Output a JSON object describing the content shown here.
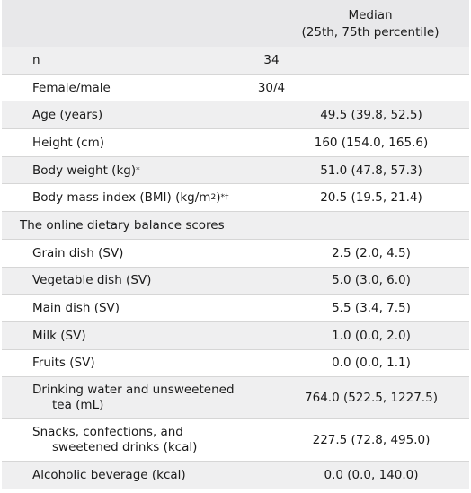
{
  "header": {
    "col_value_line1": "Median",
    "col_value_line2": "(25th, 75th percentile)"
  },
  "rows": {
    "n": {
      "label": "n",
      "mid": "34"
    },
    "sex": {
      "label": "Female/male",
      "mid": "30/4"
    },
    "age": {
      "label": "Age (years)",
      "value": "49.5 (39.8, 52.5)"
    },
    "height": {
      "label": "Height (cm)",
      "value": "160 (154.0, 165.6)"
    },
    "weight": {
      "label": "Body weight (kg)",
      "mark": "*",
      "value": "51.0 (47.8, 57.3)"
    },
    "bmi": {
      "label_pre": "Body mass index (BMI) (kg/m",
      "label_sup_unit": "2",
      "label_post": ")",
      "mark": "*†",
      "value": "20.5 (19.5, 21.4)"
    },
    "section": {
      "label": "The online dietary balance scores"
    },
    "grain": {
      "label": "Grain dish (SV)",
      "value": "2.5 (2.0, 4.5)"
    },
    "vegetable": {
      "label": "Vegetable dish (SV)",
      "value": "5.0 (3.0, 6.0)"
    },
    "main": {
      "label": "Main dish (SV)",
      "value": "5.5 (3.4, 7.5)"
    },
    "milk": {
      "label": "Milk (SV)",
      "value": "1.0 (0.0, 2.0)"
    },
    "fruits": {
      "label": "Fruits (SV)",
      "value": "0.0 (0.0, 1.1)"
    },
    "water": {
      "label_line1": "Drinking water and unsweetened",
      "label_line2": "tea (mL)",
      "value": "764.0 (522.5, 1227.5)"
    },
    "snacks": {
      "label_line1": "Snacks, confections, and",
      "label_line2": "sweetened drinks (kcal)",
      "value": "227.5 (72.8, 495.0)"
    },
    "alcohol": {
      "label": "Alcoholic beverage (kcal)",
      "value": "0.0 (0.0, 140.0)"
    }
  }
}
